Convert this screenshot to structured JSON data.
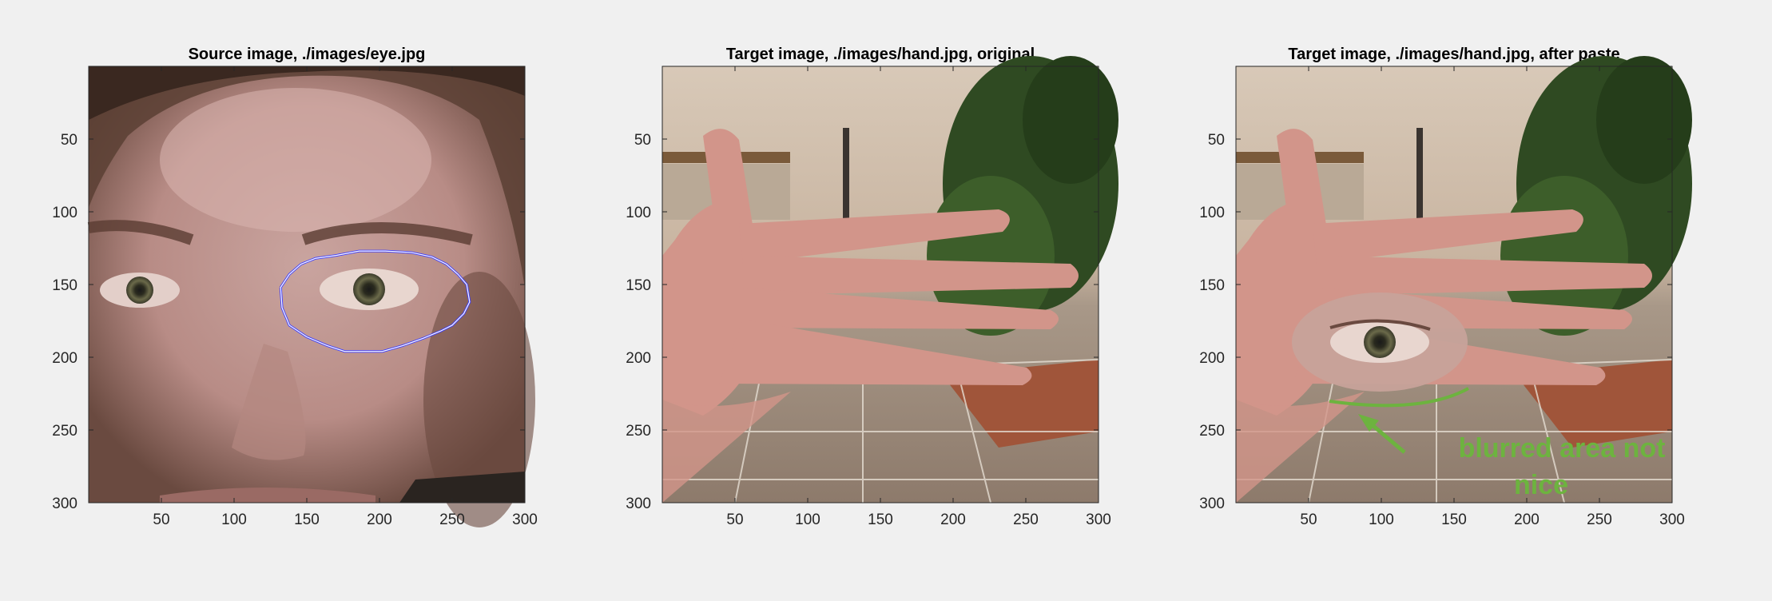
{
  "chart_data": [
    {
      "type": "image",
      "title": "Source image, ./images/eye.jpg",
      "xlim": [
        0,
        300
      ],
      "ylim": [
        0,
        300
      ],
      "xticks": [
        50,
        100,
        150,
        200,
        250,
        300
      ],
      "yticks": [
        50,
        100,
        150,
        200,
        250,
        300
      ],
      "image_content": "close-up face photo",
      "overlay": {
        "type": "closed-contour",
        "stroke": "#3b3bff",
        "points": [
          [
            132,
            152
          ],
          [
            138,
            143
          ],
          [
            146,
            136
          ],
          [
            156,
            132
          ],
          [
            170,
            130
          ],
          [
            186,
            127
          ],
          [
            204,
            127
          ],
          [
            222,
            128
          ],
          [
            236,
            131
          ],
          [
            246,
            136
          ],
          [
            254,
            143
          ],
          [
            260,
            150
          ],
          [
            262,
            162
          ],
          [
            258,
            170
          ],
          [
            250,
            178
          ],
          [
            242,
            182
          ],
          [
            230,
            187
          ],
          [
            216,
            192
          ],
          [
            202,
            196
          ],
          [
            188,
            196
          ],
          [
            176,
            196
          ],
          [
            164,
            192
          ],
          [
            150,
            186
          ],
          [
            138,
            178
          ],
          [
            133,
            166
          ]
        ]
      }
    },
    {
      "type": "image",
      "title": "Target image, ./images/hand.jpg, original",
      "xlim": [
        0,
        300
      ],
      "ylim": [
        0,
        300
      ],
      "xticks": [
        50,
        100,
        150,
        200,
        250,
        300
      ],
      "yticks": [
        50,
        100,
        150,
        200,
        250,
        300
      ],
      "image_content": "photo of an open hand in a room"
    },
    {
      "type": "image",
      "title": "Target image, ./images/hand.jpg, after paste",
      "xlim": [
        0,
        300
      ],
      "ylim": [
        0,
        300
      ],
      "xticks": [
        50,
        100,
        150,
        200,
        250,
        300
      ],
      "yticks": [
        50,
        100,
        150,
        200,
        250,
        300
      ],
      "image_content": "hand photo with pasted eye region",
      "annotation": {
        "lines": [
          "blurred  area not",
          "nice"
        ],
        "color": "#6db33f"
      }
    }
  ],
  "colors": {
    "background": "#f0f0f0",
    "annotation": "#6db33f",
    "contour": "#3b3bff"
  }
}
